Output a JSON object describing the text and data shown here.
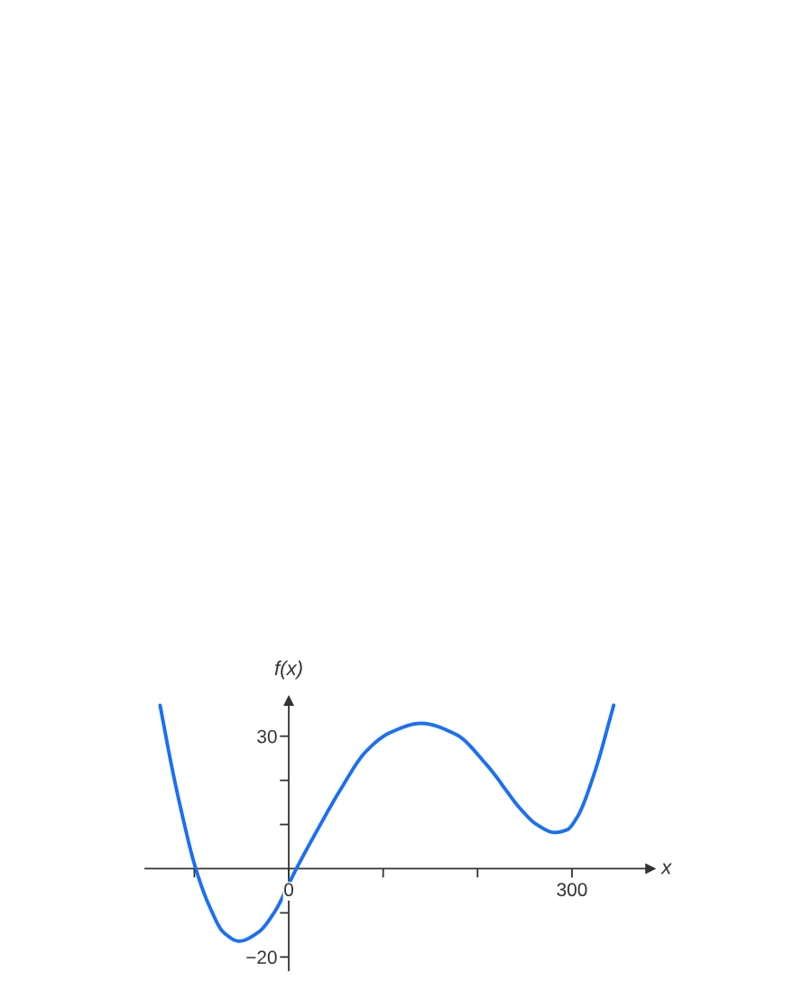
{
  "chart_data": {
    "type": "line",
    "xlabel": "x",
    "ylabel": "f(x)",
    "xlim": [
      -152,
      383
    ],
    "ylim": [
      -23,
      38
    ],
    "xticks": [
      {
        "value": -100,
        "label": null
      },
      {
        "value": 0,
        "label": "0"
      },
      {
        "value": 100,
        "label": null
      },
      {
        "value": 200,
        "label": null
      },
      300
    ],
    "yticks": [
      {
        "value": -20,
        "label": "−20"
      },
      {
        "value": -10,
        "label": null
      },
      {
        "value": 10,
        "label": null
      },
      {
        "value": 20,
        "label": null
      },
      30
    ],
    "grid": false,
    "marker": "none",
    "line_style": "solid",
    "series": [
      {
        "color": "#1a6ff5",
        "x": [
          -136.3,
          -124.2,
          -113.2,
          -98.5,
          -83.8,
          -69.1,
          -52.5,
          -32.3,
          -13.9,
          0.8,
          8.1,
          33.8,
          55.9,
          81.6,
          107.3,
          140.3,
          177.1,
          210.1,
          246.9,
          262,
          281.8,
          294.6,
          305.6,
          324,
          344.2
        ],
        "values": [
          37.0,
          23.4,
          12.5,
          0,
          -8.6,
          -14.4,
          -16.4,
          -14.4,
          -9.4,
          -3.1,
          0,
          10.1,
          18.3,
          26.5,
          30.8,
          32.9,
          30.4,
          23.4,
          13.2,
          10.1,
          8.2,
          8.8,
          11.7,
          21.8,
          37.0
        ]
      }
    ]
  }
}
